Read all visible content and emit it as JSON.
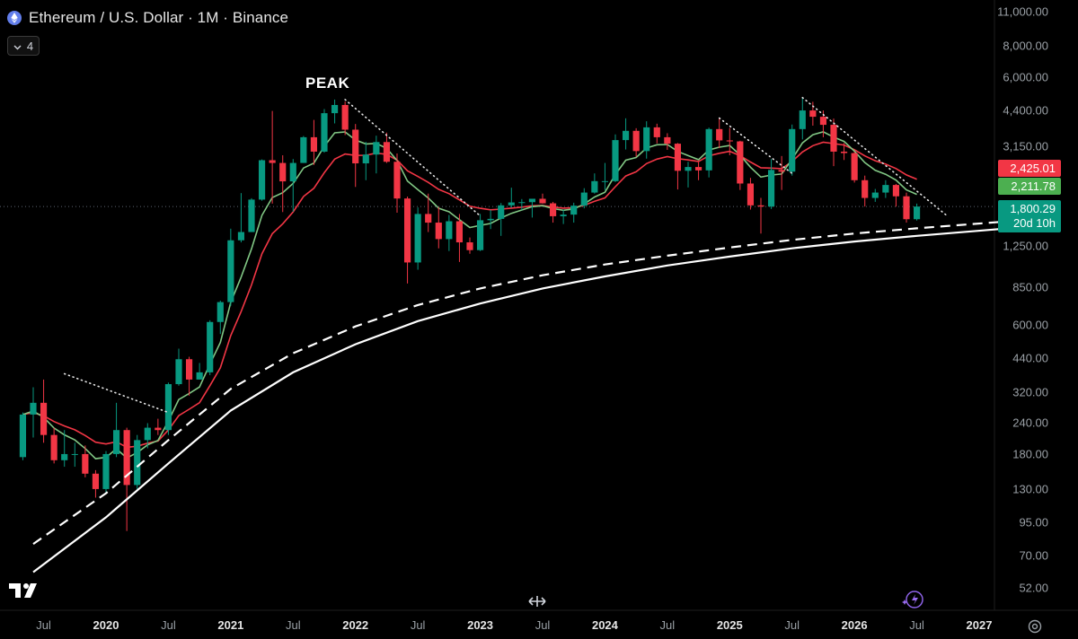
{
  "header": {
    "title": "Ethereum / U.S. Dollar · 1M · Binance",
    "indicator_count": "4"
  },
  "annotation": {
    "peak": "PEAK"
  },
  "price_tags": {
    "red_ma": "2,425.01",
    "green_ma": "2,211.78",
    "last_price": "1,800.29",
    "countdown": "20d 10h"
  },
  "colors": {
    "up": "#089981",
    "down": "#f23645",
    "fast_ma": "#81c784",
    "slow_ma": "#f23645",
    "background": "#000000"
  },
  "icons": [
    "ethereum-icon",
    "chevron-down-icon",
    "tradingview-logo",
    "horizontal-scroll-icon",
    "magic-sparkle-icon",
    "settings-gear-icon"
  ],
  "chart_data": {
    "type": "candlestick",
    "title": "Ethereum / U.S. Dollar · 1M · Binance",
    "y_scale": "log",
    "ylim": [
      45,
      11500
    ],
    "y_ticks": [
      "11,000.00",
      "8,000.00",
      "6,000.00",
      "4,400.00",
      "3,150.00",
      "1,250.00",
      "850.00",
      "600.00",
      "440.00",
      "320.00",
      "240.00",
      "180.00",
      "130.00",
      "95.00",
      "70.00",
      "52.00"
    ],
    "x_ticks": [
      "Jul",
      "2020",
      "Jul",
      "2021",
      "Jul",
      "2022",
      "Jul",
      "2023",
      "Jul",
      "2024",
      "Jul",
      "2025",
      "Jul",
      "2026",
      "Jul",
      "2027"
    ],
    "xlim": [
      "2019-05",
      "2027-03"
    ],
    "candles": [
      [
        "2019-05",
        175,
        260,
        170,
        265
      ],
      [
        "2019-06",
        260,
        290,
        210,
        335
      ],
      [
        "2019-07",
        290,
        215,
        200,
        360
      ],
      [
        "2019-08",
        215,
        170,
        165,
        230
      ],
      [
        "2019-09",
        170,
        180,
        160,
        225
      ],
      [
        "2019-10",
        180,
        180,
        160,
        200
      ],
      [
        "2019-11",
        180,
        150,
        145,
        195
      ],
      [
        "2019-12",
        150,
        130,
        120,
        155
      ],
      [
        "2020-01",
        130,
        180,
        125,
        185
      ],
      [
        "2020-02",
        180,
        225,
        175,
        290
      ],
      [
        "2020-03",
        225,
        135,
        88,
        230
      ],
      [
        "2020-04",
        135,
        205,
        130,
        215
      ],
      [
        "2020-05",
        205,
        230,
        190,
        240
      ],
      [
        "2020-06",
        230,
        225,
        215,
        250
      ],
      [
        "2020-07",
        225,
        345,
        215,
        350
      ],
      [
        "2020-08",
        345,
        435,
        340,
        480
      ],
      [
        "2020-09",
        435,
        360,
        310,
        445
      ],
      [
        "2020-10",
        360,
        385,
        360,
        420
      ],
      [
        "2020-11",
        385,
        615,
        375,
        625
      ],
      [
        "2020-12",
        615,
        740,
        550,
        750
      ],
      [
        "2021-01",
        740,
        1315,
        715,
        1465
      ],
      [
        "2021-02",
        1315,
        1420,
        1290,
        2040
      ],
      [
        "2021-03",
        1420,
        1920,
        1440,
        1945
      ],
      [
        "2021-04",
        1920,
        2770,
        1900,
        2790
      ],
      [
        "2021-05",
        2770,
        2700,
        1850,
        4380
      ],
      [
        "2021-06",
        2700,
        2275,
        1710,
        2900
      ],
      [
        "2021-07",
        2275,
        2700,
        1715,
        2800
      ],
      [
        "2021-08",
        2700,
        3430,
        2700,
        3470
      ],
      [
        "2021-09",
        3430,
        3000,
        2650,
        4030
      ],
      [
        "2021-10",
        3000,
        4290,
        2970,
        4460
      ],
      [
        "2021-11",
        4290,
        4630,
        3900,
        4870
      ],
      [
        "2021-12",
        4630,
        3680,
        3500,
        4780
      ],
      [
        "2022-01",
        3680,
        2690,
        2160,
        3880
      ],
      [
        "2022-02",
        2690,
        2920,
        2300,
        3285
      ],
      [
        "2022-03",
        2920,
        3280,
        2450,
        3480
      ],
      [
        "2022-04",
        3280,
        2730,
        2700,
        3580
      ],
      [
        "2022-05",
        2730,
        1940,
        1700,
        2950
      ],
      [
        "2022-06",
        1940,
        1070,
        880,
        1975
      ],
      [
        "2022-07",
        1070,
        1680,
        1000,
        1785
      ],
      [
        "2022-08",
        1680,
        1550,
        1420,
        2030
      ],
      [
        "2022-09",
        1550,
        1330,
        1220,
        1790
      ],
      [
        "2022-10",
        1330,
        1570,
        1190,
        1665
      ],
      [
        "2022-11",
        1570,
        1290,
        1075,
        1680
      ],
      [
        "2022-12",
        1290,
        1200,
        1160,
        1350
      ],
      [
        "2023-01",
        1200,
        1585,
        1190,
        1680
      ],
      [
        "2023-02",
        1585,
        1605,
        1460,
        1745
      ],
      [
        "2023-03",
        1605,
        1820,
        1370,
        1860
      ],
      [
        "2023-04",
        1820,
        1870,
        1780,
        2145
      ],
      [
        "2023-05",
        1870,
        1875,
        1740,
        1930
      ],
      [
        "2023-06",
        1875,
        1935,
        1625,
        1930
      ],
      [
        "2023-07",
        1935,
        1855,
        1850,
        2030
      ],
      [
        "2023-08",
        1855,
        1645,
        1550,
        1880
      ],
      [
        "2023-09",
        1645,
        1670,
        1530,
        1750
      ],
      [
        "2023-10",
        1670,
        1815,
        1550,
        1865
      ],
      [
        "2023-11",
        1815,
        2050,
        1770,
        2135
      ],
      [
        "2023-12",
        2050,
        2280,
        2030,
        2450
      ],
      [
        "2024-01",
        2280,
        2280,
        2100,
        2700
      ],
      [
        "2024-02",
        2280,
        3340,
        2260,
        3520
      ],
      [
        "2024-03",
        3340,
        3640,
        3060,
        4090
      ],
      [
        "2024-04",
        3640,
        3015,
        2860,
        3730
      ],
      [
        "2024-05",
        3015,
        3760,
        2810,
        3980
      ],
      [
        "2024-06",
        3760,
        3430,
        3240,
        3890
      ],
      [
        "2024-07",
        3430,
        3230,
        3050,
        3560
      ],
      [
        "2024-08",
        3230,
        2510,
        2110,
        3250
      ],
      [
        "2024-09",
        2510,
        2600,
        2150,
        2730
      ],
      [
        "2024-10",
        2600,
        2520,
        2300,
        2720
      ],
      [
        "2024-11",
        2520,
        3700,
        2360,
        3750
      ],
      [
        "2024-12",
        3700,
        3330,
        3100,
        4100
      ],
      [
        "2025-01",
        3330,
        3300,
        2900,
        3740
      ],
      [
        "2025-02",
        3300,
        2230,
        2100,
        3320
      ],
      [
        "2025-03",
        2230,
        1820,
        1750,
        2350
      ],
      [
        "2025-04",
        1820,
        1800,
        1400,
        1950
      ],
      [
        "2025-05",
        1800,
        2530,
        1760,
        2800
      ],
      [
        "2025-06",
        2530,
        2490,
        2100,
        2880
      ],
      [
        "2025-07",
        2490,
        3700,
        2400,
        3860
      ],
      [
        "2025-08",
        3700,
        4400,
        3360,
        4960
      ],
      [
        "2025-09",
        4400,
        4150,
        3820,
        4770
      ],
      [
        "2025-10",
        4150,
        3850,
        3430,
        4400
      ],
      [
        "2025-11",
        3850,
        3000,
        2620,
        4080
      ],
      [
        "2025-12",
        3000,
        2960,
        2775,
        3250
      ],
      [
        "2026-01",
        2960,
        2300,
        2250,
        3000
      ],
      [
        "2026-02",
        2300,
        1950,
        1800,
        2400
      ],
      [
        "2026-03",
        1950,
        2050,
        1880,
        2120
      ],
      [
        "2026-04",
        2050,
        2200,
        1950,
        2300
      ],
      [
        "2026-05",
        2200,
        1980,
        1800,
        2220
      ],
      [
        "2026-06",
        1980,
        1600,
        1550,
        2050
      ],
      [
        "2026-07",
        1600,
        1800,
        1580,
        1850
      ]
    ],
    "series": [
      {
        "name": "",
        "color": "#81c784",
        "last": "2,211.78"
      },
      {
        "name": "",
        "color": "#f23645",
        "last": "2,425.01"
      }
    ],
    "curves": [
      {
        "style": "dashed",
        "points": [
          [
            "2019-06",
            78
          ],
          [
            "2020-01",
            125
          ],
          [
            "2020-07",
            205
          ],
          [
            "2021-01",
            330
          ],
          [
            "2021-07",
            460
          ],
          [
            "2022-01",
            590
          ],
          [
            "2022-07",
            720
          ],
          [
            "2023-01",
            840
          ],
          [
            "2023-07",
            950
          ],
          [
            "2024-01",
            1050
          ],
          [
            "2024-07",
            1140
          ],
          [
            "2025-01",
            1230
          ],
          [
            "2025-07",
            1320
          ],
          [
            "2026-01",
            1400
          ],
          [
            "2026-07",
            1470
          ],
          [
            "2027-03",
            1560
          ]
        ]
      },
      {
        "style": "solid",
        "points": [
          [
            "2019-06",
            60
          ],
          [
            "2020-01",
            100
          ],
          [
            "2020-07",
            165
          ],
          [
            "2021-01",
            270
          ],
          [
            "2021-07",
            385
          ],
          [
            "2022-01",
            500
          ],
          [
            "2022-07",
            620
          ],
          [
            "2023-01",
            730
          ],
          [
            "2023-07",
            840
          ],
          [
            "2024-01",
            940
          ],
          [
            "2024-07",
            1040
          ],
          [
            "2025-01",
            1130
          ],
          [
            "2025-07",
            1220
          ],
          [
            "2026-01",
            1300
          ],
          [
            "2026-07",
            1370
          ],
          [
            "2027-03",
            1460
          ]
        ]
      }
    ],
    "trendlines": [
      {
        "style": "dotted",
        "from": [
          "2019-09",
          380
        ],
        "to": [
          "2020-07",
          265
        ]
      },
      {
        "style": "dotted",
        "from": [
          "2021-12",
          4870
        ],
        "to": [
          "2023-01",
          1650
        ]
      },
      {
        "style": "dotted",
        "from": [
          "2024-12",
          4100
        ],
        "to": [
          "2025-07",
          2450
        ]
      },
      {
        "style": "dotted",
        "from": [
          "2025-08",
          4960
        ],
        "to": [
          "2026-10",
          1640
        ]
      }
    ],
    "last_price": 1800.29
  }
}
